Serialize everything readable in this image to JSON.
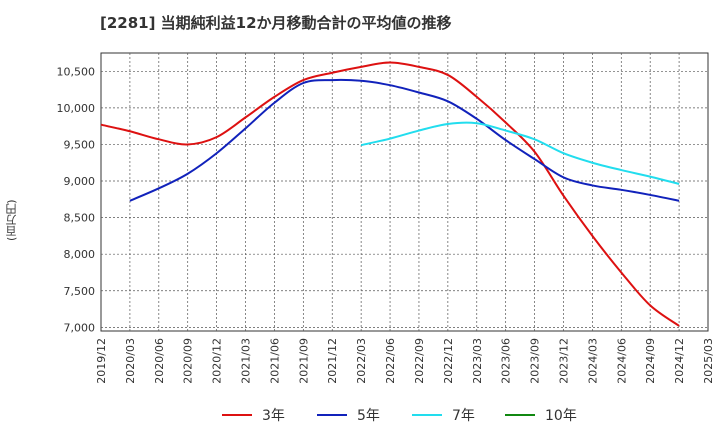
{
  "chart_data": {
    "type": "line",
    "title": "[2281] 当期純利益12か月移動合計の平均値の推移",
    "ylabel": "(百万円)",
    "xlabel": "",
    "ylim": [
      6950,
      10750
    ],
    "yticks": [
      7000,
      7500,
      8000,
      8500,
      9000,
      9500,
      10000,
      10500
    ],
    "ytick_labels": [
      "7,000",
      "7,500",
      "8,000",
      "8,500",
      "9,000",
      "9,500",
      "10,000",
      "10,500"
    ],
    "x_ticks": [
      "2019/12",
      "2020/03",
      "2020/06",
      "2020/09",
      "2020/12",
      "2021/03",
      "2021/06",
      "2021/09",
      "2021/12",
      "2022/03",
      "2022/06",
      "2022/09",
      "2022/12",
      "2023/03",
      "2023/06",
      "2023/09",
      "2023/12",
      "2024/03",
      "2024/06",
      "2024/09",
      "2024/12",
      "2025/03"
    ],
    "grid": true,
    "legend_position": "bottom",
    "series": [
      {
        "name": "3年",
        "color": "#dd1111",
        "points": [
          [
            "2019/12",
            9770
          ],
          [
            "2020/03",
            9680
          ],
          [
            "2020/06",
            9570
          ],
          [
            "2020/09",
            9500
          ],
          [
            "2020/12",
            9600
          ],
          [
            "2021/03",
            9870
          ],
          [
            "2021/06",
            10150
          ],
          [
            "2021/09",
            10380
          ],
          [
            "2021/12",
            10480
          ],
          [
            "2022/03",
            10560
          ],
          [
            "2022/06",
            10620
          ],
          [
            "2022/09",
            10560
          ],
          [
            "2022/12",
            10450
          ],
          [
            "2023/03",
            10150
          ],
          [
            "2023/06",
            9800
          ],
          [
            "2023/09",
            9400
          ],
          [
            "2023/12",
            8800
          ],
          [
            "2024/03",
            8250
          ],
          [
            "2024/06",
            7750
          ],
          [
            "2024/09",
            7300
          ],
          [
            "2024/12",
            7020
          ]
        ]
      },
      {
        "name": "5年",
        "color": "#1122bb",
        "points": [
          [
            "2020/03",
            8730
          ],
          [
            "2020/06",
            8900
          ],
          [
            "2020/09",
            9100
          ],
          [
            "2020/12",
            9380
          ],
          [
            "2021/03",
            9720
          ],
          [
            "2021/06",
            10070
          ],
          [
            "2021/09",
            10340
          ],
          [
            "2021/12",
            10380
          ],
          [
            "2022/03",
            10370
          ],
          [
            "2022/06",
            10310
          ],
          [
            "2022/09",
            10210
          ],
          [
            "2022/12",
            10090
          ],
          [
            "2023/03",
            9850
          ],
          [
            "2023/06",
            9560
          ],
          [
            "2023/09",
            9300
          ],
          [
            "2023/12",
            9050
          ],
          [
            "2024/03",
            8940
          ],
          [
            "2024/06",
            8880
          ],
          [
            "2024/09",
            8810
          ],
          [
            "2024/12",
            8730
          ]
        ]
      },
      {
        "name": "7年",
        "color": "#22ddee",
        "points": [
          [
            "2022/03",
            9490
          ],
          [
            "2022/06",
            9580
          ],
          [
            "2022/09",
            9690
          ],
          [
            "2022/12",
            9780
          ],
          [
            "2023/03",
            9790
          ],
          [
            "2023/06",
            9690
          ],
          [
            "2023/09",
            9570
          ],
          [
            "2023/12",
            9380
          ],
          [
            "2024/03",
            9250
          ],
          [
            "2024/06",
            9150
          ],
          [
            "2024/09",
            9060
          ],
          [
            "2024/12",
            8960
          ]
        ]
      },
      {
        "name": "10年",
        "color": "#118811",
        "points": []
      }
    ]
  }
}
